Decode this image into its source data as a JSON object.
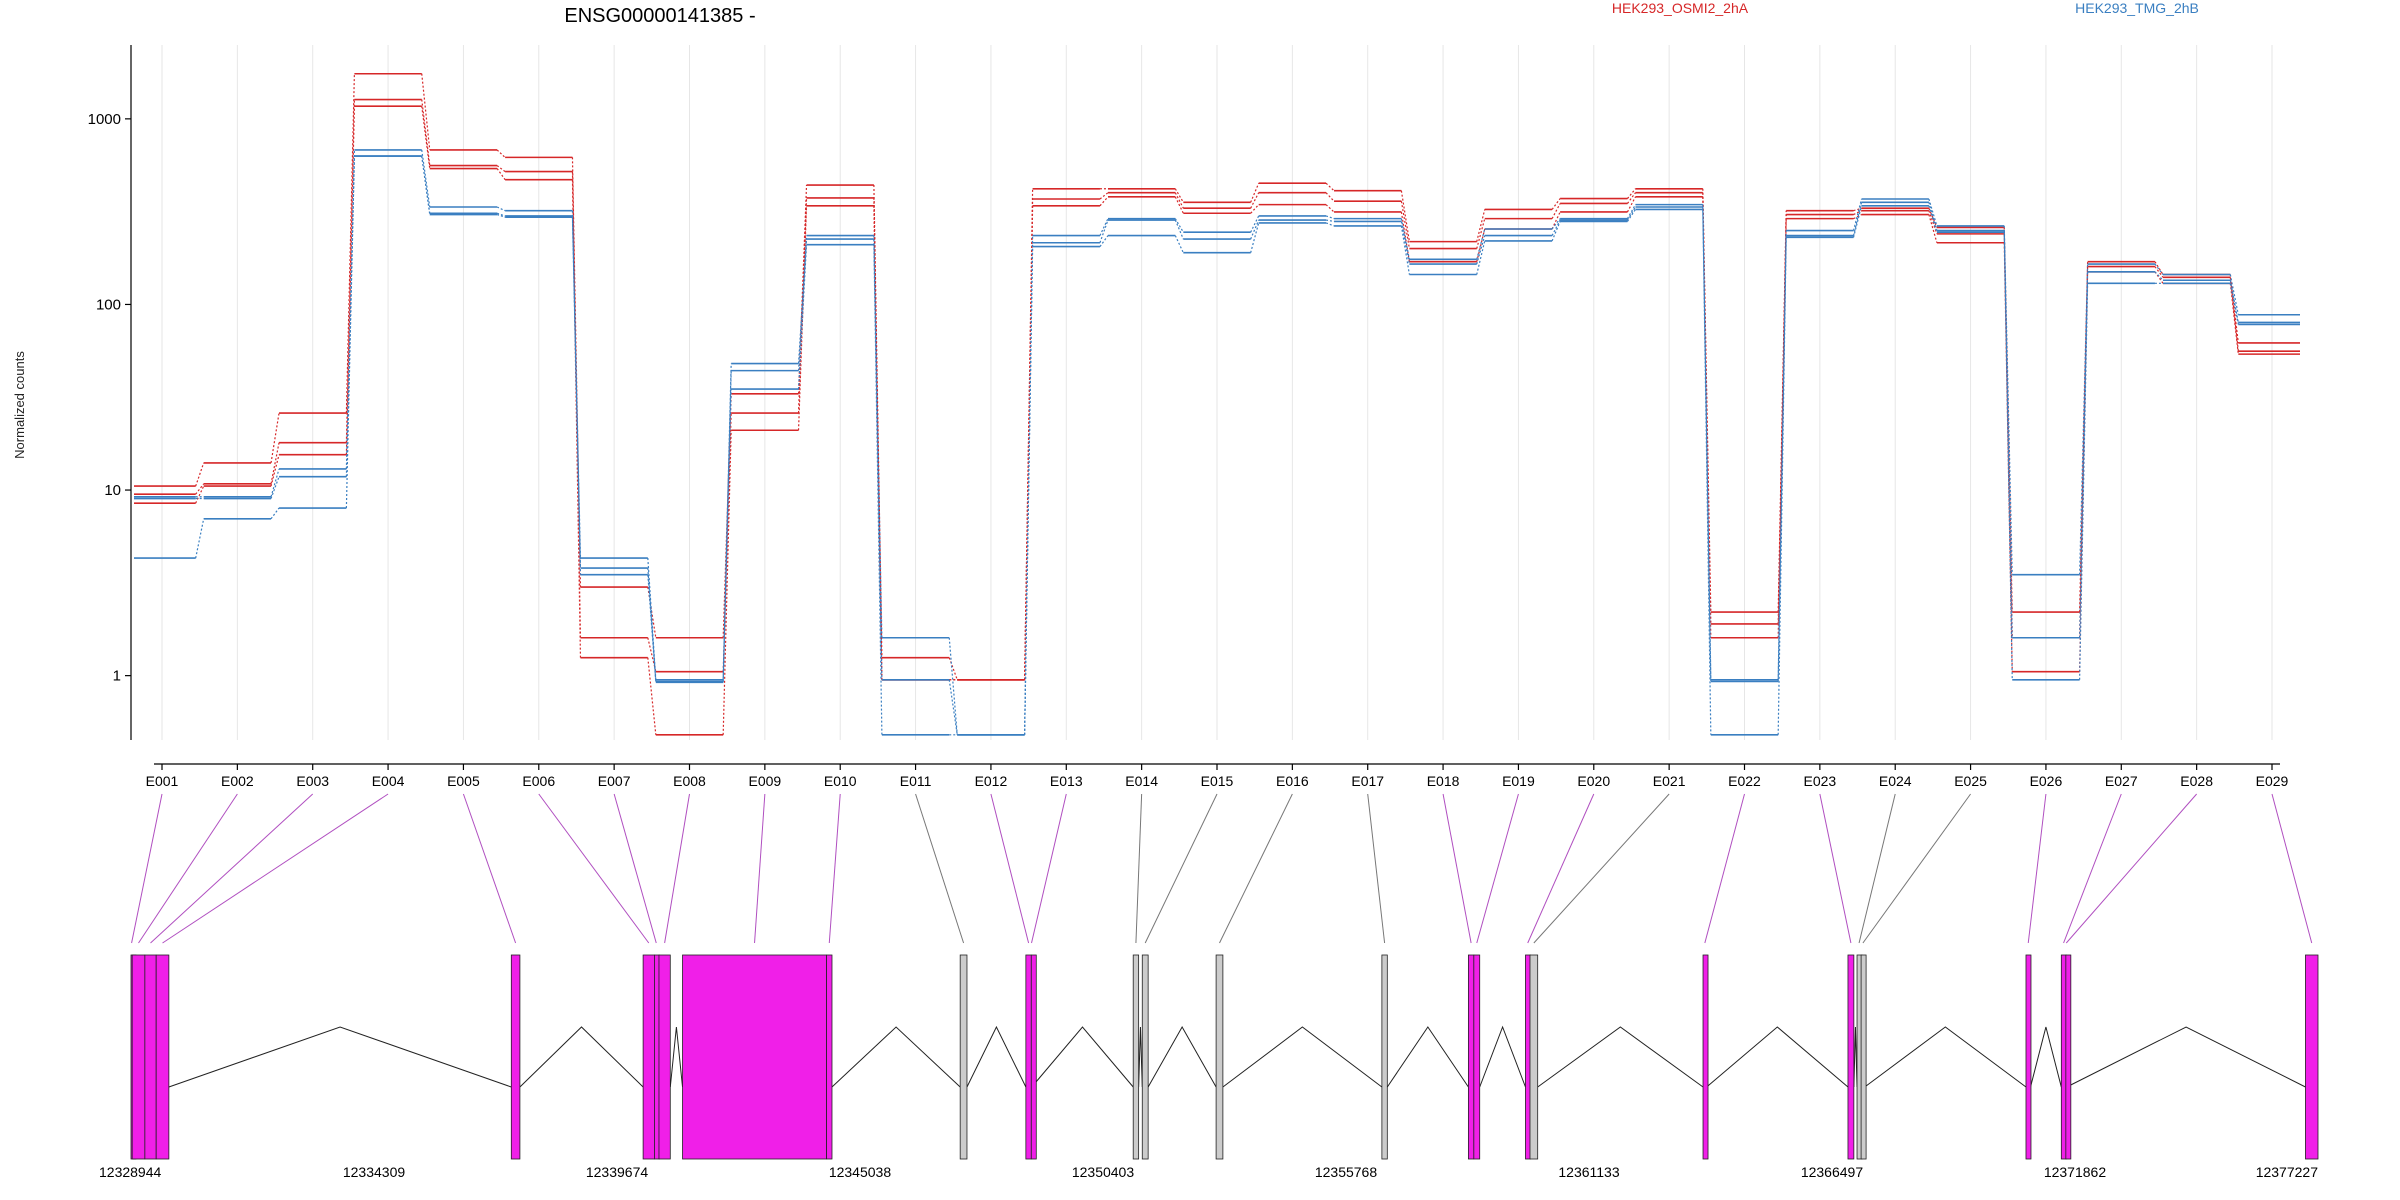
{
  "chart_data": {
    "type": "line",
    "title": "ENSG00000141385 -",
    "ylabel": "Normalized counts",
    "yscale": "log",
    "ylim": [
      0.45,
      2500
    ],
    "y_ticks": [
      1,
      10,
      100,
      1000
    ],
    "grid": true,
    "legend_position": "top",
    "legend": [
      {
        "label": "HEK293_OSMI2_2hA",
        "color": "#d62728"
      },
      {
        "label": "HEK293_TMG_2hB",
        "color": "#3a7fc1"
      }
    ],
    "categories": [
      "E001",
      "E002",
      "E003",
      "E004",
      "E005",
      "E006",
      "E007",
      "E008",
      "E009",
      "E010",
      "E011",
      "E012",
      "E013",
      "E014",
      "E015",
      "E016",
      "E017",
      "E018",
      "E019",
      "E020",
      "E021",
      "E022",
      "E023",
      "E024",
      "E025",
      "E026",
      "E027",
      "E028",
      "E029"
    ],
    "series": [
      {
        "group": "HEK293_OSMI2_2hA",
        "color": "#d62728",
        "values": [
          10.5,
          14.0,
          26.0,
          1750,
          680,
          620,
          3.0,
          1.6,
          33,
          440,
          1.25,
          0.95,
          420,
          420,
          355,
          450,
          410,
          218,
          325,
          372,
          420,
          2.2,
          320,
          330,
          260,
          2.2,
          170,
          145,
          62
        ]
      },
      {
        "group": "HEK293_OSMI2_2hA",
        "color": "#d62728",
        "values": [
          9.5,
          10.8,
          18.0,
          1270,
          560,
          520,
          1.6,
          1.05,
          26,
          375,
          0.95,
          0.95,
          370,
          400,
          330,
          400,
          360,
          200,
          290,
          350,
          400,
          1.9,
          305,
          320,
          240,
          1.6,
          160,
          140,
          56
        ]
      },
      {
        "group": "HEK293_OSMI2_2hA",
        "color": "#d62728",
        "values": [
          8.5,
          10.5,
          15.5,
          1170,
          540,
          470,
          1.25,
          0.48,
          21,
          340,
          0.95,
          0.95,
          340,
          380,
          310,
          345,
          315,
          170,
          255,
          315,
          380,
          1.6,
          290,
          305,
          215,
          1.05,
          150,
          130,
          54
        ]
      },
      {
        "group": "HEK293_TMG_2hB",
        "color": "#3a7fc1",
        "values": [
          9.2,
          9.2,
          13.0,
          680,
          335,
          320,
          4.3,
          0.95,
          48,
          235,
          1.6,
          0.48,
          235,
          290,
          245,
          300,
          290,
          175,
          255,
          290,
          345,
          0.95,
          250,
          370,
          265,
          3.5,
          165,
          145,
          88
        ]
      },
      {
        "group": "HEK293_TMG_2hB",
        "color": "#3a7fc1",
        "values": [
          9.0,
          9.0,
          11.8,
          630,
          310,
          300,
          3.8,
          0.93,
          44,
          225,
          0.95,
          0.48,
          215,
          285,
          225,
          285,
          280,
          165,
          235,
          285,
          335,
          0.93,
          235,
          355,
          250,
          1.6,
          150,
          135,
          80
        ]
      },
      {
        "group": "HEK293_TMG_2hB",
        "color": "#3a7fc1",
        "values": [
          4.3,
          7.0,
          8.0,
          630,
          305,
          295,
          3.5,
          0.92,
          35,
          210,
          0.48,
          0.48,
          205,
          235,
          190,
          275,
          265,
          145,
          220,
          280,
          325,
          0.48,
          230,
          340,
          245,
          0.95,
          130,
          130,
          78
        ]
      }
    ],
    "gene_model": {
      "coord_ticks": [
        "12328944",
        "12334309",
        "12339674",
        "12345038",
        "12350403",
        "12355768",
        "12361133",
        "12366497",
        "12371862",
        "12377227"
      ],
      "exon_color": "#f01fe8",
      "other_exon_color": "#cccccc",
      "exons": [
        {
          "id": "E001",
          "start": 12328944,
          "end": 12328970,
          "highlight": true
        },
        {
          "id": "E002",
          "start": 12328970,
          "end": 12329250,
          "highlight": true
        },
        {
          "id": "E003",
          "start": 12329250,
          "end": 12329500,
          "highlight": true
        },
        {
          "id": "E004",
          "start": 12329500,
          "end": 12329780,
          "highlight": true
        },
        {
          "id": "E005",
          "start": 12337340,
          "end": 12337530,
          "highlight": true
        },
        {
          "id": "E006",
          "start": 12340250,
          "end": 12340500,
          "highlight": true
        },
        {
          "id": "E007",
          "start": 12340500,
          "end": 12340580,
          "highlight": true
        },
        {
          "id": "E008",
          "start": 12340600,
          "end": 12340850,
          "highlight": true
        },
        {
          "id": "E009",
          "start": 12341120,
          "end": 12344300,
          "highlight": true
        },
        {
          "id": "E010",
          "start": 12344300,
          "end": 12344420,
          "highlight": true
        },
        {
          "id": "E011",
          "start": 12347250,
          "end": 12347400,
          "highlight": false
        },
        {
          "id": "E012",
          "start": 12348700,
          "end": 12348820,
          "highlight": true
        },
        {
          "id": "E013",
          "start": 12348820,
          "end": 12348830,
          "highlight": true
        },
        {
          "id": "E014",
          "start": 12351070,
          "end": 12351190,
          "highlight": false
        },
        {
          "id": "E015",
          "start": 12351270,
          "end": 12351400,
          "highlight": false
        },
        {
          "id": "E016",
          "start": 12352900,
          "end": 12353050,
          "highlight": false
        },
        {
          "id": "E017",
          "start": 12356560,
          "end": 12356680,
          "highlight": false
        },
        {
          "id": "E018",
          "start": 12358470,
          "end": 12358590,
          "highlight": true
        },
        {
          "id": "E019",
          "start": 12358590,
          "end": 12358720,
          "highlight": true
        },
        {
          "id": "E020",
          "start": 12359730,
          "end": 12359830,
          "highlight": true
        },
        {
          "id": "E021",
          "start": 12359830,
          "end": 12360000,
          "highlight": false
        },
        {
          "id": "E022",
          "start": 12363650,
          "end": 12363730,
          "highlight": true
        },
        {
          "id": "E023",
          "start": 12366850,
          "end": 12366980,
          "highlight": true
        },
        {
          "id": "E024",
          "start": 12367050,
          "end": 12367140,
          "highlight": false
        },
        {
          "id": "E025",
          "start": 12367140,
          "end": 12367220,
          "highlight": false
        },
        {
          "id": "E026",
          "start": 12370780,
          "end": 12370880,
          "highlight": true
        },
        {
          "id": "E027",
          "start": 12371560,
          "end": 12371660,
          "highlight": true
        },
        {
          "id": "E028",
          "start": 12371660,
          "end": 12371680,
          "highlight": true
        },
        {
          "id": "E029",
          "start": 12376950,
          "end": 12377227,
          "highlight": true
        }
      ]
    }
  }
}
